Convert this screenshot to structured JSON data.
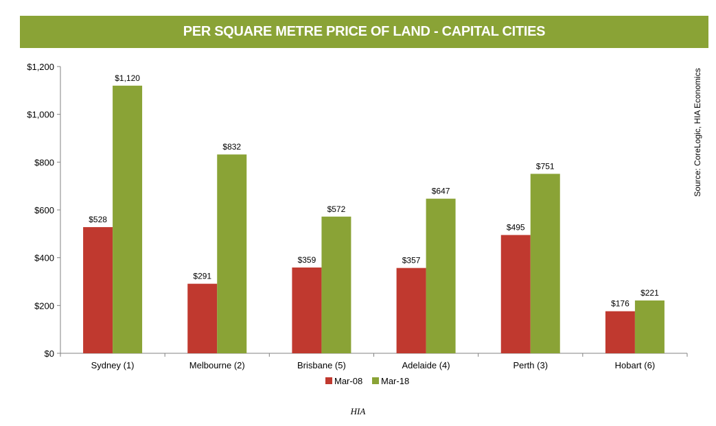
{
  "chart_data": {
    "type": "bar",
    "title": "PER SQUARE METRE PRICE OF LAND - CAPITAL CITIES",
    "categories": [
      "Sydney (1)",
      "Melbourne (2)",
      "Brisbane (5)",
      "Adelaide (4)",
      "Perth (3)",
      "Hobart (6)"
    ],
    "series": [
      {
        "name": "Mar-08",
        "color": "#c0392f",
        "values": [
          528,
          291,
          359,
          357,
          495,
          176
        ],
        "labels": [
          "$528",
          "$291",
          "$359",
          "$357",
          "$495",
          "$176"
        ]
      },
      {
        "name": "Mar-18",
        "color": "#8aa336",
        "values": [
          1120,
          832,
          572,
          647,
          751,
          221
        ],
        "labels": [
          "$1,120",
          "$832",
          "$572",
          "$647",
          "$751",
          "$221"
        ]
      }
    ],
    "ylim": [
      0,
      1200
    ],
    "yticks": [
      0,
      200,
      400,
      600,
      800,
      1000,
      1200
    ],
    "ytick_labels": [
      "$0",
      "$200",
      "$400",
      "$600",
      "$800",
      "$1,000",
      "$1,200"
    ],
    "xlabel": "",
    "ylabel": "",
    "legend": "bottom-center",
    "grid": false,
    "source": "Source: CoreLogic, HIA  Economics"
  },
  "caption": "HIA"
}
